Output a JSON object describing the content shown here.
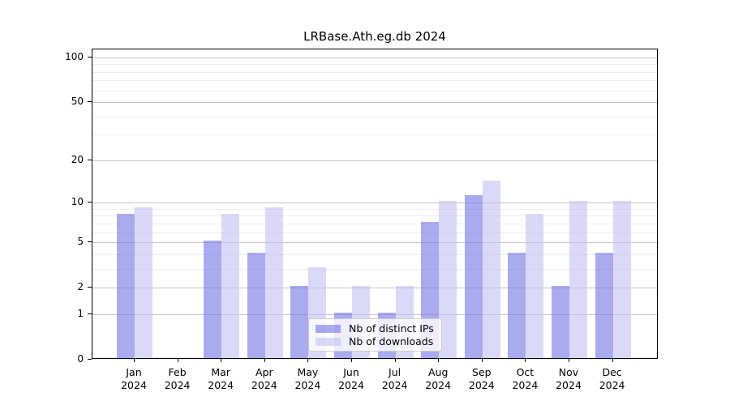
{
  "title": "LRBase.Ath.eg.db 2024",
  "chart_data": {
    "type": "bar",
    "title": "LRBase.Ath.eg.db 2024",
    "categories": [
      "Jan",
      "Feb",
      "Mar",
      "Apr",
      "May",
      "Jun",
      "Jul",
      "Aug",
      "Sep",
      "Oct",
      "Nov",
      "Dec"
    ],
    "year_label": "2024",
    "series": [
      {
        "key": "distinct-ips",
        "name": "Nb of distinct IPs",
        "fill": "rgba(113,113,227,0.6)",
        "hex_on_white": "#aaaaee",
        "values": [
          8,
          0,
          5,
          4,
          2,
          1,
          1,
          7,
          11,
          4,
          2,
          4
        ]
      },
      {
        "key": "downloads",
        "name": "Nb of downloads",
        "fill": "rgba(193,193,243,0.6)",
        "hex_on_white": "#d9d9f7",
        "values": [
          9,
          0,
          8,
          9,
          3,
          2,
          2,
          10,
          14,
          8,
          10,
          10
        ]
      }
    ],
    "xlabel": "",
    "ylabel": "",
    "y_axis": {
      "scale": "log10(value+1)",
      "major_ticks": [
        0,
        1,
        2,
        5,
        10,
        20,
        50,
        100
      ],
      "minor_ticks": [
        3,
        4,
        6,
        7,
        8,
        9,
        30,
        40,
        60,
        70,
        80,
        90
      ],
      "max": 113
    },
    "grid": true,
    "legend_position": "lower center",
    "colors": {
      "grid_major": "#c6c6c6",
      "grid_minor": "#ededed",
      "axis": "#000000",
      "legend_border": "#cccccc"
    }
  }
}
